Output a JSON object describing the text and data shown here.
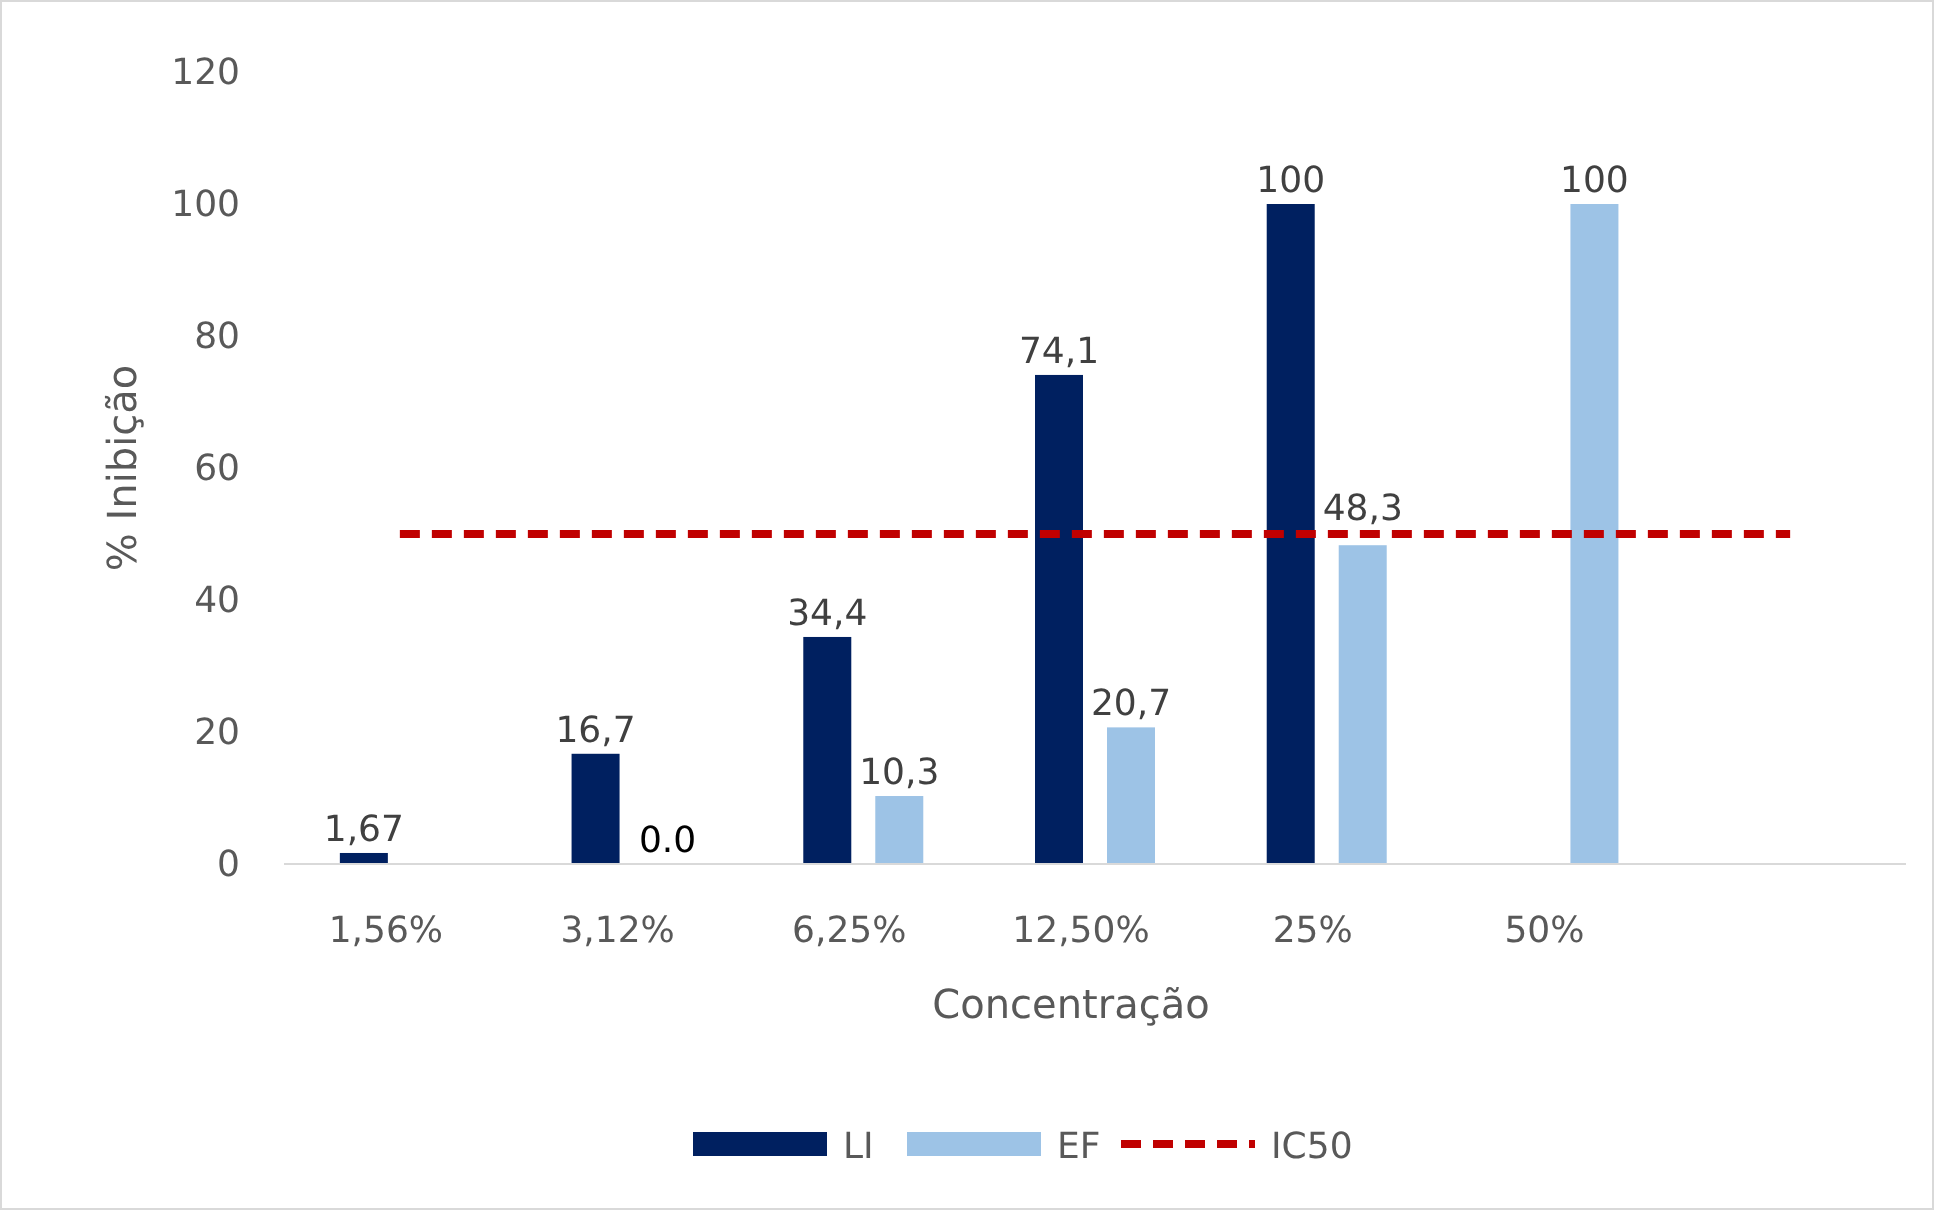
{
  "chart_data": {
    "type": "bar",
    "xlabel": "Concentração",
    "ylabel": "% Inibição",
    "categories": [
      "1,56%",
      "3,12%",
      "6,25%",
      "12,50%",
      "25%",
      "50%",
      null
    ],
    "series": [
      {
        "name": "LI",
        "color": "#002060",
        "values": [
          1.67,
          16.7,
          34.4,
          74.1,
          100,
          null,
          null
        ],
        "value_labels": [
          "1,67",
          "16,7",
          "34,4",
          "74,1",
          "100",
          null,
          null
        ]
      },
      {
        "name": "EF",
        "color": "#9dc3e6",
        "values": [
          null,
          0,
          10.3,
          20.7,
          48.3,
          100,
          null
        ],
        "value_labels": [
          null,
          "0.0",
          "10,3",
          "20,7",
          "48,3",
          "100",
          null
        ]
      }
    ],
    "ref_lines": [
      {
        "axis": "y",
        "value": 50,
        "label": "IC50",
        "color": "#c00000",
        "line_style": "dashed"
      }
    ],
    "ylim": [
      0,
      120
    ],
    "yticks": [
      0,
      20,
      40,
      60,
      80,
      100,
      120
    ],
    "grid": false,
    "legend": "bottom"
  }
}
